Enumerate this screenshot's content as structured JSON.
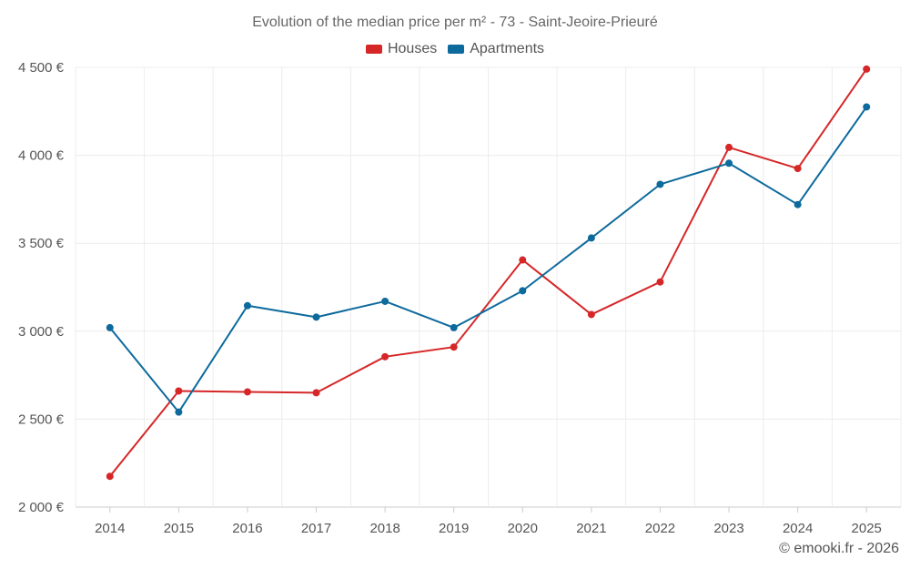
{
  "chart_data": {
    "type": "line",
    "title": "Evolution of the median price per m² - 73 - Saint-Jeoire-Prieuré",
    "xlabel": "",
    "ylabel": "",
    "categories": [
      "2014",
      "2015",
      "2016",
      "2017",
      "2018",
      "2019",
      "2020",
      "2021",
      "2022",
      "2023",
      "2024",
      "2025"
    ],
    "y_ticks": [
      2000,
      2500,
      3000,
      3500,
      4000,
      4500
    ],
    "y_tick_labels": [
      "2 000 €",
      "2 500 €",
      "3 000 €",
      "3 500 €",
      "4 000 €",
      "4 500 €"
    ],
    "ylim": [
      2000,
      4500
    ],
    "grid": true,
    "legend_position": "top-center",
    "series": [
      {
        "name": "Houses",
        "color": "#d62728",
        "values": [
          2175,
          2660,
          2655,
          2650,
          2855,
          2910,
          3405,
          3095,
          3280,
          4045,
          3925,
          4490
        ]
      },
      {
        "name": "Apartments",
        "color": "#0d6a9c",
        "values": [
          3020,
          2540,
          3145,
          3080,
          3170,
          3020,
          3230,
          3530,
          3835,
          3955,
          3720,
          4275
        ]
      }
    ]
  },
  "credit": "© emooki.fr - 2026"
}
